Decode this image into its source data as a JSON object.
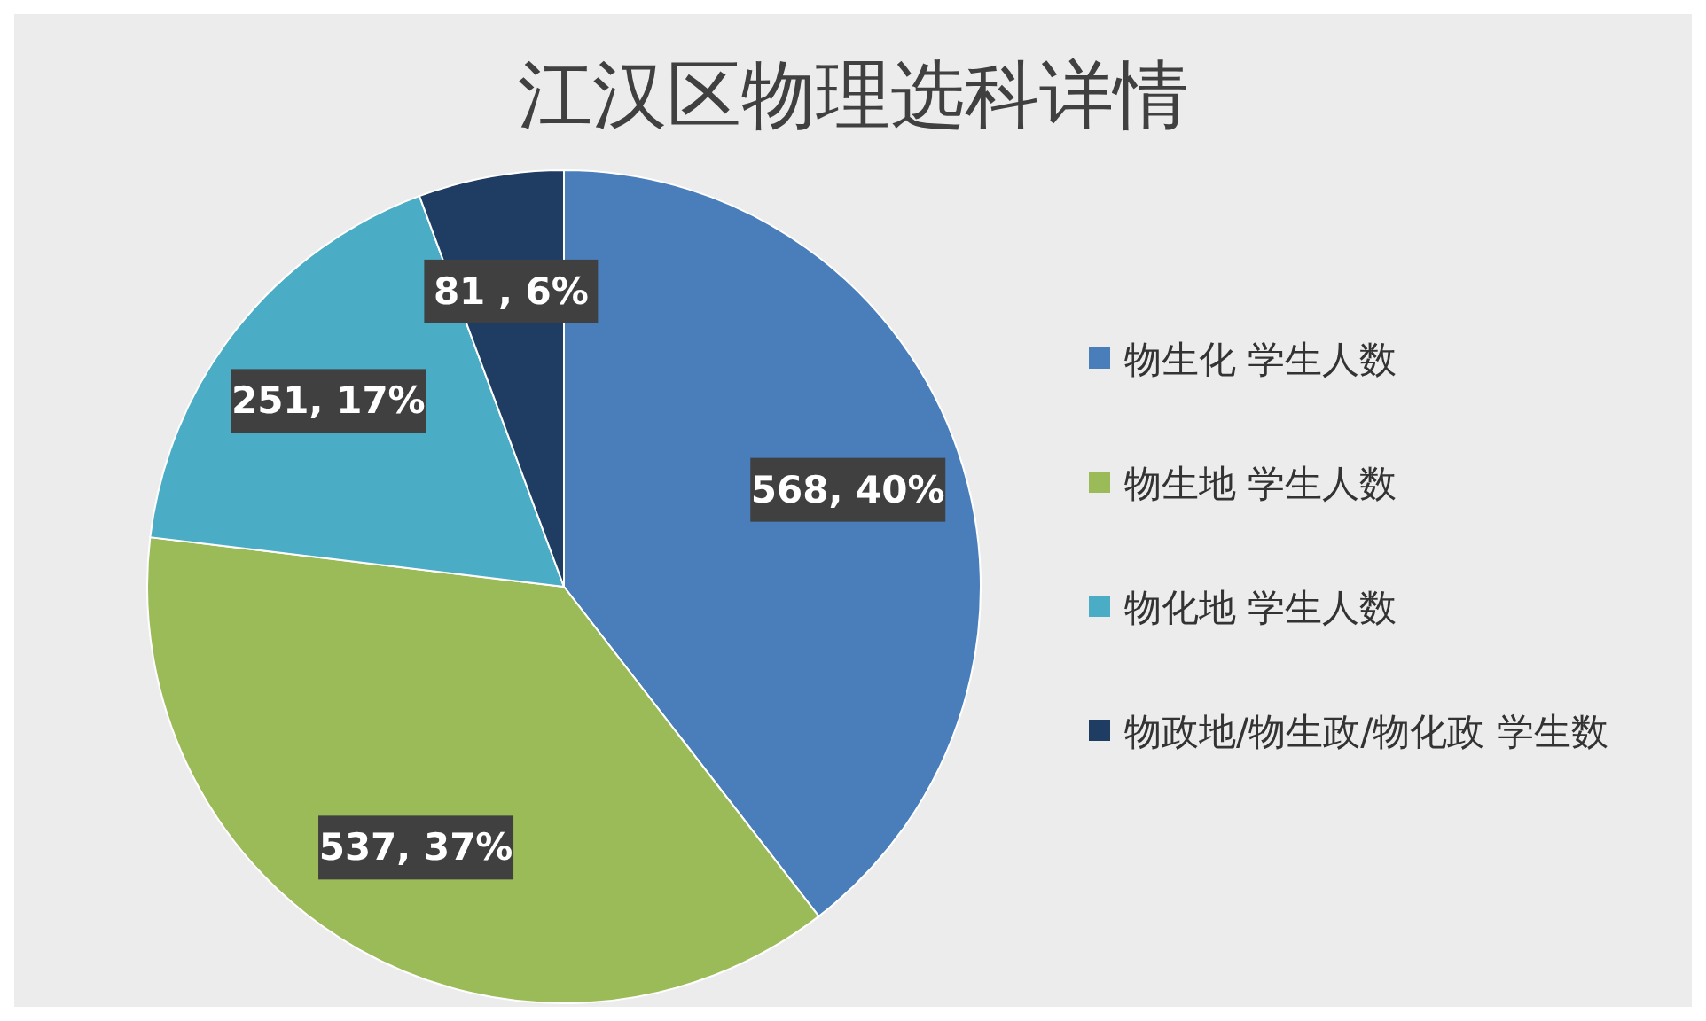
{
  "chart_data": {
    "type": "pie",
    "title": "江汉区物理选科详情",
    "categories": [
      "物生化 学生人数",
      "物生地 学生人数",
      "物化地 学生人数",
      "物政地/物生政/物化政 学生数"
    ],
    "values": [
      568,
      537,
      251,
      81
    ],
    "colors": [
      "#4a7ebb",
      "#9bbb59",
      "#4bacc6",
      "#1f3d63"
    ],
    "value_labels": [
      "568, 40%",
      "537, 37%",
      "251, 17%",
      "81 , 6%"
    ],
    "legend": "right"
  }
}
